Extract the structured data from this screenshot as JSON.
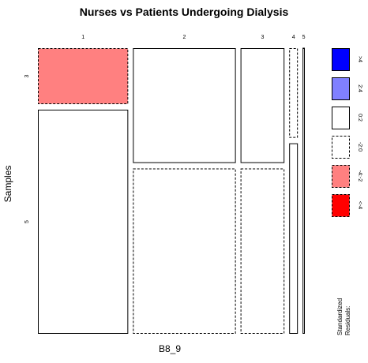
{
  "chart_data": {
    "type": "mosaic",
    "title": "Nurses vs Patients Undergoing Dialysis",
    "xlabel": "B8_9",
    "ylabel": "Samples",
    "columns": [
      "1",
      "2",
      "3",
      "4",
      "5"
    ],
    "column_shares": [
      0.323,
      0.368,
      0.157,
      0.031,
      0.008
    ],
    "rows": [
      "3",
      "5"
    ],
    "cells": [
      {
        "column": "1",
        "row": "3",
        "share": 0.2,
        "residual_class": "-4:-2"
      },
      {
        "column": "1",
        "row": "5",
        "share": 0.8,
        "residual_class": "0:2"
      },
      {
        "column": "2",
        "row": "3",
        "share": 0.41,
        "residual_class": "0:2"
      },
      {
        "column": "2",
        "row": "5",
        "share": 0.59,
        "residual_class": "-2:0"
      },
      {
        "column": "3",
        "row": "3",
        "share": 0.41,
        "residual_class": "0:2"
      },
      {
        "column": "3",
        "row": "5",
        "share": 0.59,
        "residual_class": "-2:0"
      },
      {
        "column": "4",
        "row": "3",
        "share": 0.32,
        "residual_class": "-2:0"
      },
      {
        "column": "4",
        "row": "5",
        "share": 0.68,
        "residual_class": "0:2"
      },
      {
        "column": "5",
        "row": "3",
        "share": 0.0,
        "residual_class": "0:2"
      },
      {
        "column": "5",
        "row": "5",
        "share": 1.0,
        "residual_class": "0:2"
      }
    ],
    "legend": {
      "title": "Standardized\nResiduals:",
      "items": [
        {
          "label": ">4",
          "fill": "#0000FF",
          "dashed": false
        },
        {
          "label": "2:4",
          "fill": "#8080FF",
          "dashed": false
        },
        {
          "label": "0:2",
          "fill": "#FFFFFF",
          "dashed": false
        },
        {
          "label": "-2:0",
          "fill": "#FFFFFF",
          "dashed": true
        },
        {
          "label": "-4:-2",
          "fill": "#FF8080",
          "dashed": true
        },
        {
          "label": "<-4",
          "fill": "#FF0000",
          "dashed": true
        }
      ]
    }
  }
}
